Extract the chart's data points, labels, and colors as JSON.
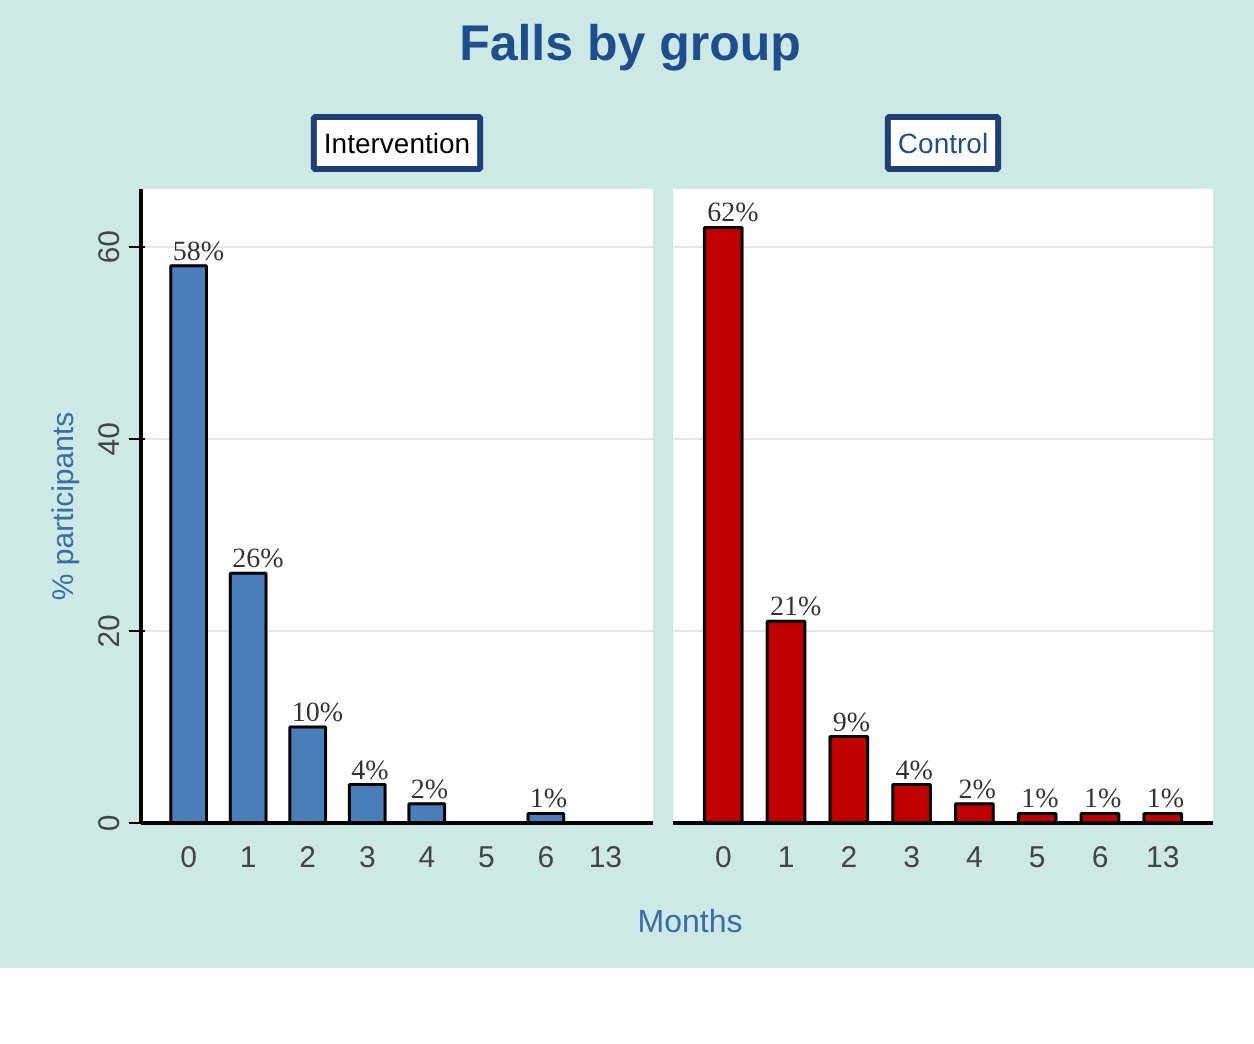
{
  "chart_data": [
    {
      "type": "bar",
      "title": "Falls by group",
      "subtitle": "Intervention",
      "ylabel": "% participants",
      "xlabel": "Months",
      "categories": [
        "0",
        "1",
        "2",
        "3",
        "4",
        "5",
        "6",
        "13"
      ],
      "series": [
        {
          "color": "#4a7ebb",
          "values": [
            58,
            26,
            10,
            4,
            2,
            0,
            1,
            0
          ],
          "value_labels": [
            "58%",
            "26%",
            "10%",
            "4%",
            "2%",
            null,
            "1%",
            null
          ]
        }
      ],
      "ylim": [
        0,
        66
      ],
      "yticks": [
        0,
        20,
        40,
        60
      ],
      "grid": "y"
    },
    {
      "type": "bar",
      "subtitle": "Control",
      "categories": [
        "0",
        "1",
        "2",
        "3",
        "4",
        "5",
        "6",
        "13"
      ],
      "series": [
        {
          "color": "#c00000",
          "values": [
            62,
            21,
            9,
            4,
            2,
            1,
            1,
            1
          ],
          "value_labels": [
            "62%",
            "21%",
            "9%",
            "4%",
            "2%",
            "1%",
            "1%",
            "1%"
          ]
        }
      ],
      "ylim": [
        0,
        66
      ],
      "yticks": [
        0,
        20,
        40,
        60
      ],
      "grid": "y",
      "tick_labels": "x"
    }
  ]
}
